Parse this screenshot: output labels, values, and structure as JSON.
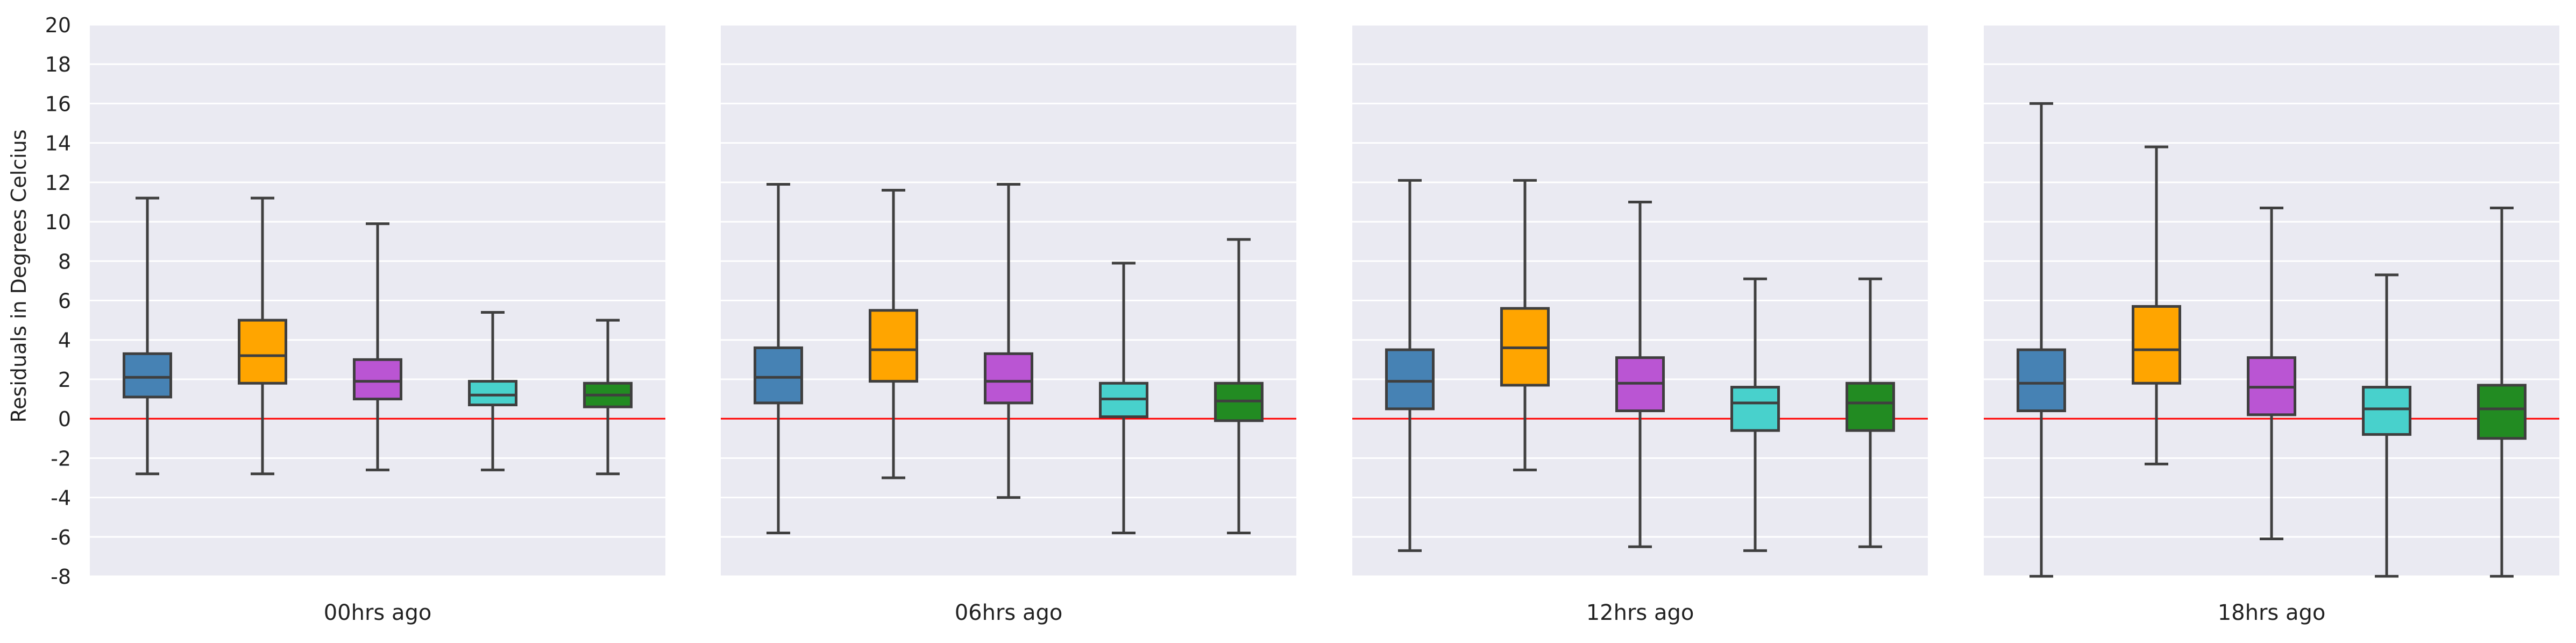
{
  "chart_data": {
    "type": "box",
    "ylabel": "Residuals in Degrees Celcius",
    "ylim": [
      -8,
      20
    ],
    "yticks": [
      -8,
      -6,
      -4,
      -2,
      0,
      2,
      4,
      6,
      8,
      10,
      12,
      14,
      16,
      18,
      20
    ],
    "reference_line": {
      "y": 0,
      "color": "#ff0000"
    },
    "grid": true,
    "background": "#eaeaf2",
    "box_colors": [
      "#4682b4",
      "#ffa500",
      "#ba55d3",
      "#48d1cc",
      "#228b22"
    ],
    "panels": [
      {
        "xlabel": "00hrs ago",
        "boxes": [
          {
            "whislo": -2.8,
            "q1": 1.1,
            "med": 2.1,
            "q3": 3.3,
            "whishi": 11.2
          },
          {
            "whislo": -2.8,
            "q1": 1.8,
            "med": 3.2,
            "q3": 5.0,
            "whishi": 11.2
          },
          {
            "whislo": -2.6,
            "q1": 1.0,
            "med": 1.9,
            "q3": 3.0,
            "whishi": 9.9
          },
          {
            "whislo": -2.6,
            "q1": 0.7,
            "med": 1.2,
            "q3": 1.9,
            "whishi": 5.4
          },
          {
            "whislo": -2.8,
            "q1": 0.6,
            "med": 1.2,
            "q3": 1.8,
            "whishi": 5.0
          }
        ]
      },
      {
        "xlabel": "06hrs ago",
        "boxes": [
          {
            "whislo": -5.8,
            "q1": 0.8,
            "med": 2.1,
            "q3": 3.6,
            "whishi": 11.9
          },
          {
            "whislo": -3.0,
            "q1": 1.9,
            "med": 3.5,
            "q3": 5.5,
            "whishi": 11.6
          },
          {
            "whislo": -4.0,
            "q1": 0.8,
            "med": 1.9,
            "q3": 3.3,
            "whishi": 11.9
          },
          {
            "whislo": -5.8,
            "q1": 0.1,
            "med": 1.0,
            "q3": 1.8,
            "whishi": 7.9
          },
          {
            "whislo": -5.8,
            "q1": -0.1,
            "med": 0.9,
            "q3": 1.8,
            "whishi": 9.1
          }
        ]
      },
      {
        "xlabel": "12hrs ago",
        "boxes": [
          {
            "whislo": -6.7,
            "q1": 0.5,
            "med": 1.9,
            "q3": 3.5,
            "whishi": 12.1
          },
          {
            "whislo": -2.6,
            "q1": 1.7,
            "med": 3.6,
            "q3": 5.6,
            "whishi": 12.1
          },
          {
            "whislo": -6.5,
            "q1": 0.4,
            "med": 1.8,
            "q3": 3.1,
            "whishi": 11.0
          },
          {
            "whislo": -6.7,
            "q1": -0.6,
            "med": 0.8,
            "q3": 1.6,
            "whishi": 7.1
          },
          {
            "whislo": -6.5,
            "q1": -0.6,
            "med": 0.8,
            "q3": 1.8,
            "whishi": 7.1
          }
        ]
      },
      {
        "xlabel": "18hrs ago",
        "boxes": [
          {
            "whislo": -8.0,
            "q1": 0.4,
            "med": 1.8,
            "q3": 3.5,
            "whishi": 16.0
          },
          {
            "whislo": -2.3,
            "q1": 1.8,
            "med": 3.5,
            "q3": 5.7,
            "whishi": 13.8
          },
          {
            "whislo": -6.1,
            "q1": 0.2,
            "med": 1.6,
            "q3": 3.1,
            "whishi": 10.7
          },
          {
            "whislo": -8.0,
            "q1": -0.8,
            "med": 0.5,
            "q3": 1.6,
            "whishi": 7.3
          },
          {
            "whislo": -8.0,
            "q1": -1.0,
            "med": 0.5,
            "q3": 1.7,
            "whishi": 10.7
          }
        ]
      }
    ]
  }
}
